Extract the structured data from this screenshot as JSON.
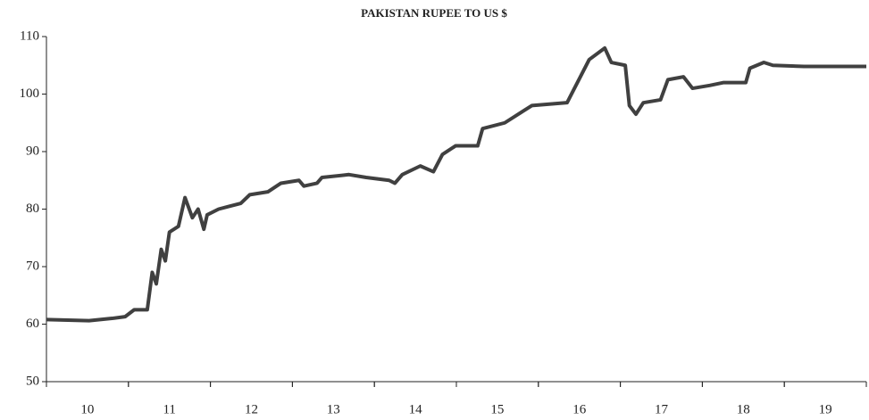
{
  "chart_data": {
    "type": "line",
    "title": "PAKISTAN RUPEE TO US $",
    "x": [
      9.5,
      10.02,
      10.3,
      10.46,
      10.57,
      10.73,
      10.79,
      10.84,
      10.9,
      10.95,
      11.0,
      11.11,
      11.19,
      11.28,
      11.35,
      11.42,
      11.46,
      11.6,
      11.87,
      11.98,
      12.2,
      12.36,
      12.58,
      12.64,
      12.8,
      12.86,
      13.19,
      13.4,
      13.68,
      13.75,
      13.84,
      14.06,
      14.22,
      14.33,
      14.49,
      14.76,
      14.82,
      15.09,
      15.31,
      15.42,
      15.85,
      16.12,
      16.31,
      16.39,
      16.56,
      16.61,
      16.69,
      16.78,
      16.99,
      17.08,
      17.27,
      17.38,
      17.59,
      17.76,
      18.03,
      18.08,
      18.25,
      18.36,
      18.74,
      19.12,
      19.5
    ],
    "series": [
      {
        "color": "#404040",
        "values": [
          60.8,
          60.6,
          61,
          61.3,
          62.5,
          62.5,
          69,
          67,
          73,
          71,
          76,
          77,
          82,
          78.5,
          80,
          76.5,
          79,
          80,
          81,
          82.5,
          83,
          84.5,
          85,
          84,
          84.5,
          85.5,
          86,
          85.5,
          85,
          84.5,
          86,
          87.5,
          86.5,
          89.5,
          91,
          91,
          94,
          95,
          97,
          98,
          98.5,
          106,
          108,
          105.5,
          105,
          98,
          96.5,
          98.5,
          99,
          102.5,
          103,
          101,
          101.5,
          102,
          102,
          104.5,
          105.5,
          105,
          104.8,
          104.8,
          104.8
        ]
      }
    ],
    "xlim": [
      9.5,
      19.5
    ],
    "xticks": [
      10,
      11,
      12,
      13,
      14,
      15,
      16,
      17,
      18,
      19
    ],
    "ylim": [
      50,
      110
    ],
    "yticks": [
      50,
      60,
      70,
      80,
      90,
      100,
      110
    ],
    "grid": false
  }
}
